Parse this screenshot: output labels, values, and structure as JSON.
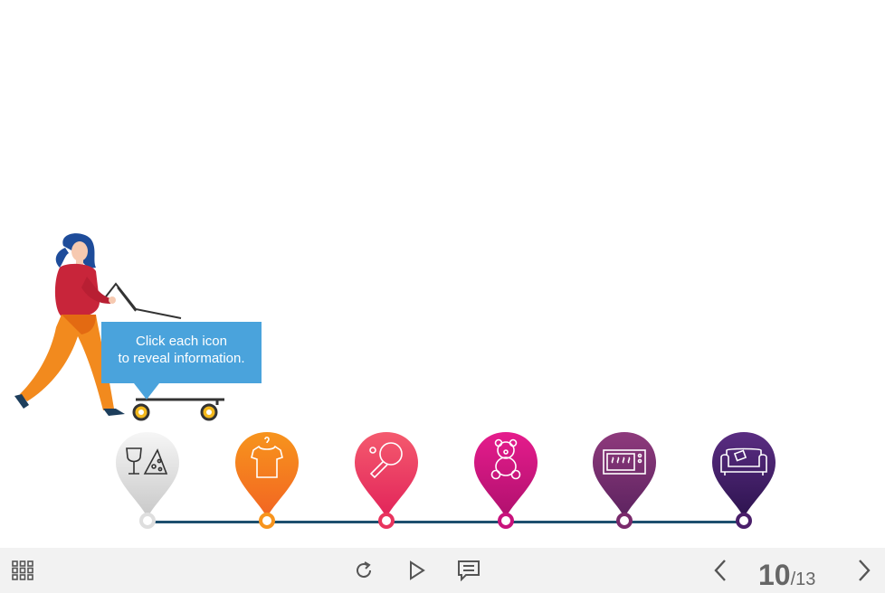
{
  "tooltip": {
    "line1": "Click each icon",
    "line2": "to reveal information."
  },
  "pins": [
    {
      "name": "food-drink",
      "icon": "wine-pizza-icon",
      "color_top": "#f4f4f4",
      "color_bottom": "#cfcfcf",
      "ring": "#e0e0e0"
    },
    {
      "name": "clothing",
      "icon": "tshirt-icon",
      "color_top": "#f7941d",
      "color_bottom": "#f26522",
      "ring": "#f7941d"
    },
    {
      "name": "sports",
      "icon": "ping-pong-icon",
      "color_top": "#f45a6e",
      "color_bottom": "#e2245a",
      "ring": "#e8345e"
    },
    {
      "name": "toys",
      "icon": "teddy-bear-icon",
      "color_top": "#e51c8c",
      "color_bottom": "#b0106e",
      "ring": "#c8127c"
    },
    {
      "name": "appliances",
      "icon": "microwave-icon",
      "color_top": "#8e3a7c",
      "color_bottom": "#5d2360",
      "ring": "#7a2a6c"
    },
    {
      "name": "furniture",
      "icon": "sofa-icon",
      "color_top": "#5a2d82",
      "color_bottom": "#2e1450",
      "ring": "#4a1f6a"
    }
  ],
  "player": {
    "current_page": "10",
    "separator": "/",
    "total_pages": "13"
  }
}
